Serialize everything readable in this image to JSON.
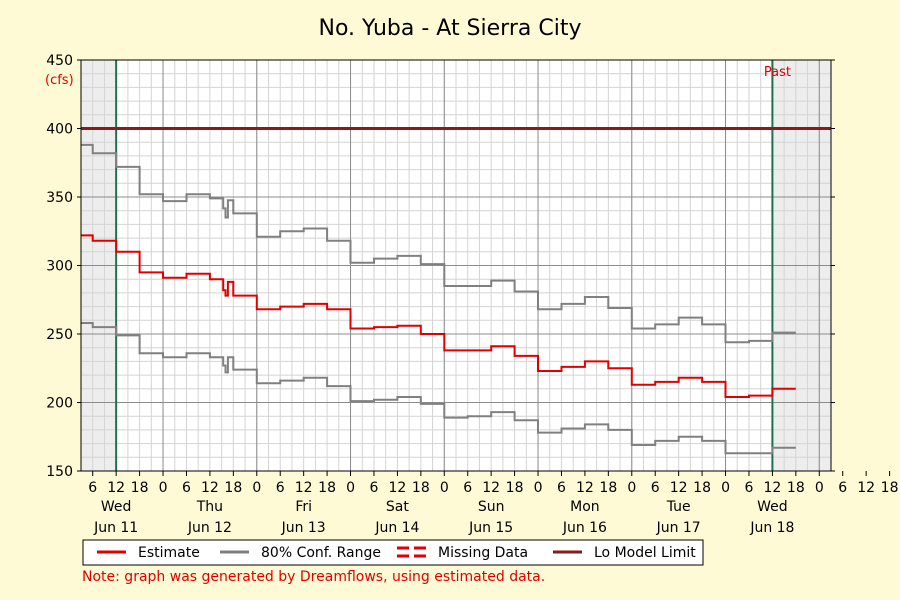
{
  "chart_data": {
    "type": "line",
    "title": "No. Yuba - At Sierra City",
    "ylabel": "(cfs)",
    "ylim": [
      150,
      450
    ],
    "yticks": [
      150,
      200,
      250,
      300,
      350,
      400,
      450
    ],
    "grid": true,
    "x_start": "Jun 11 00:00",
    "x_end": "Jun 18 24:00",
    "hour_ticks": [
      "6",
      "12",
      "18",
      "0",
      "6",
      "12",
      "18",
      "0",
      "6",
      "12",
      "18",
      "0",
      "6",
      "12",
      "18",
      "0",
      "6",
      "12",
      "18",
      "0",
      "6",
      "12",
      "18",
      "0",
      "6",
      "12",
      "18",
      "0",
      "6",
      "12",
      "18",
      "0",
      "6",
      "12",
      "18"
    ],
    "day_labels": [
      {
        "dow": "Wed",
        "date": "Jun 11"
      },
      {
        "dow": "Thu",
        "date": "Jun 12"
      },
      {
        "dow": "Fri",
        "date": "Jun 13"
      },
      {
        "dow": "Sat",
        "date": "Jun 14"
      },
      {
        "dow": "Sun",
        "date": "Jun 15"
      },
      {
        "dow": "Mon",
        "date": "Jun 16"
      },
      {
        "dow": "Tue",
        "date": "Jun 17"
      },
      {
        "dow": "Wed",
        "date": "Jun 18"
      }
    ],
    "past_label": "Past",
    "forecast_window": {
      "start": "Jun 11 12:00",
      "end": "Jun 18 12:00"
    },
    "lo_model_limit": 400,
    "series": [
      {
        "name": "Estimate",
        "color": "#e00000",
        "x_hours": [
          0,
          6,
          12,
          18,
          24,
          30,
          36,
          42,
          48,
          54,
          60,
          66,
          72,
          78,
          84,
          90,
          96,
          102,
          108,
          114,
          120,
          126,
          132,
          138,
          144,
          150,
          156,
          162,
          168,
          174,
          180,
          186,
          192
        ],
        "values": [
          322,
          318,
          310,
          295,
          291,
          294,
          290,
          278,
          268,
          270,
          272,
          268,
          254,
          255,
          256,
          250,
          238,
          238,
          241,
          234,
          223,
          226,
          230,
          225,
          213,
          215,
          218,
          215,
          204,
          205,
          210,
          210,
          210
        ]
      },
      {
        "name": "80% Conf. Range",
        "color": "#808080",
        "x_hours": [
          0,
          6,
          12,
          18,
          24,
          30,
          36,
          42,
          48,
          54,
          60,
          66,
          72,
          78,
          84,
          90,
          96,
          102,
          108,
          114,
          120,
          126,
          132,
          138,
          144,
          150,
          156,
          162,
          168,
          174,
          180,
          186,
          192
        ],
        "values": [
          388,
          382,
          372,
          352,
          347,
          352,
          349,
          338,
          321,
          325,
          327,
          318,
          302,
          305,
          307,
          301,
          285,
          285,
          289,
          281,
          268,
          272,
          277,
          269,
          254,
          257,
          262,
          257,
          244,
          245,
          251,
          251,
          251
        ]
      },
      {
        "name": "80% Conf. Range lower",
        "color": "#808080",
        "x_hours": [
          0,
          6,
          12,
          18,
          24,
          30,
          36,
          42,
          48,
          54,
          60,
          66,
          72,
          78,
          84,
          90,
          96,
          102,
          108,
          114,
          120,
          126,
          132,
          138,
          144,
          150,
          156,
          162,
          168,
          174,
          180,
          186,
          192
        ],
        "values": [
          258,
          255,
          249,
          236,
          233,
          236,
          233,
          224,
          214,
          216,
          218,
          212,
          201,
          202,
          204,
          199,
          189,
          190,
          193,
          187,
          178,
          181,
          184,
          180,
          169,
          172,
          175,
          172,
          163,
          163,
          167,
          167,
          167
        ]
      }
    ],
    "dip": {
      "x_hour": 40,
      "estimate": 278,
      "upper": 335,
      "lower": 222
    },
    "legend": [
      {
        "label": "Estimate",
        "color": "#e00000",
        "style": "solid"
      },
      {
        "label": "80% Conf. Range",
        "color": "#808080",
        "style": "solid"
      },
      {
        "label": "Missing Data",
        "color": "#e00000",
        "style": "dashed"
      },
      {
        "label": "Lo Model Limit",
        "color": "#8b1a1a",
        "style": "solid"
      }
    ],
    "legend_position": "bottom",
    "note": "Note: graph was generated by Dreamflows, using estimated data."
  }
}
